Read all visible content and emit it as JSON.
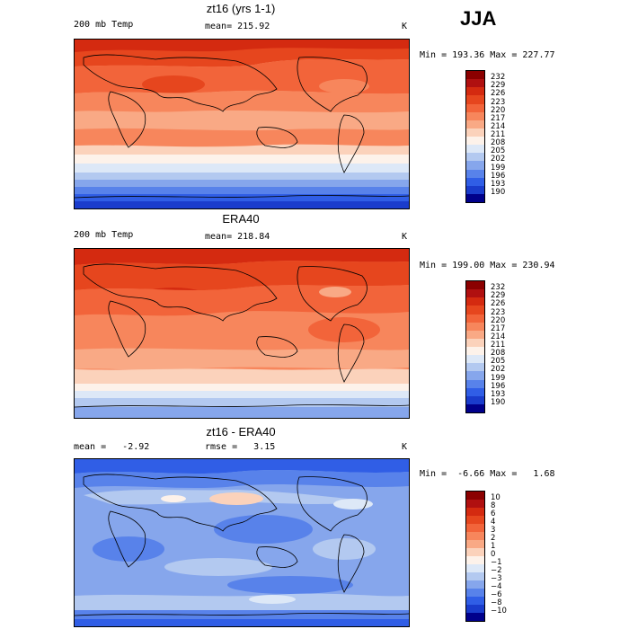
{
  "season": "JJA",
  "panels": [
    {
      "title": "zt16 (yrs 1-1)",
      "left_label": "200 mb Temp",
      "center_label": "mean= 215.92",
      "unit": "K",
      "stats": "Min = 193.36 Max = 227.77",
      "colorbar": {
        "labels": [
          "232",
          "229",
          "226",
          "223",
          "220",
          "217",
          "214",
          "211",
          "208",
          "205",
          "202",
          "199",
          "196",
          "193",
          "190"
        ],
        "colors": [
          "#8b0000",
          "#b01010",
          "#d42a10",
          "#e6461e",
          "#f2643a",
          "#f7865c",
          "#f9a985",
          "#fbd2bb",
          "#fdf2ea",
          "#dde8f7",
          "#b3c9f0",
          "#86a6ec",
          "#5882ea",
          "#305ee6",
          "#1a3ccc",
          "#00008b"
        ]
      }
    },
    {
      "title": "ERA40",
      "left_label": "200 mb Temp",
      "center_label": "mean= 218.84",
      "unit": "K",
      "stats": "Min = 199.00 Max = 230.94",
      "colorbar": {
        "labels": [
          "232",
          "229",
          "226",
          "223",
          "220",
          "217",
          "214",
          "211",
          "208",
          "205",
          "202",
          "199",
          "196",
          "193",
          "190"
        ],
        "colors": [
          "#8b0000",
          "#b01010",
          "#d42a10",
          "#e6461e",
          "#f2643a",
          "#f7865c",
          "#f9a985",
          "#fbd2bb",
          "#fdf2ea",
          "#dde8f7",
          "#b3c9f0",
          "#86a6ec",
          "#5882ea",
          "#305ee6",
          "#1a3ccc",
          "#00008b"
        ]
      }
    },
    {
      "title": "zt16 - ERA40",
      "left_label": "mean =   -2.92",
      "center_label": "rmse =   3.15",
      "unit": "K",
      "stats": "Min =  -6.66 Max =   1.68",
      "colorbar": {
        "labels": [
          "10",
          "8",
          "6",
          "4",
          "3",
          "2",
          "1",
          "0",
          "−1",
          "−2",
          "−3",
          "−4",
          "−6",
          "−8",
          "−10"
        ],
        "colors": [
          "#8b0000",
          "#b01010",
          "#d42a10",
          "#e6461e",
          "#f2643a",
          "#f7865c",
          "#f9a985",
          "#fbd2bb",
          "#fdf2ea",
          "#dde8f7",
          "#b3c9f0",
          "#86a6ec",
          "#5882ea",
          "#305ee6",
          "#1a3ccc",
          "#00008b"
        ]
      }
    }
  ]
}
